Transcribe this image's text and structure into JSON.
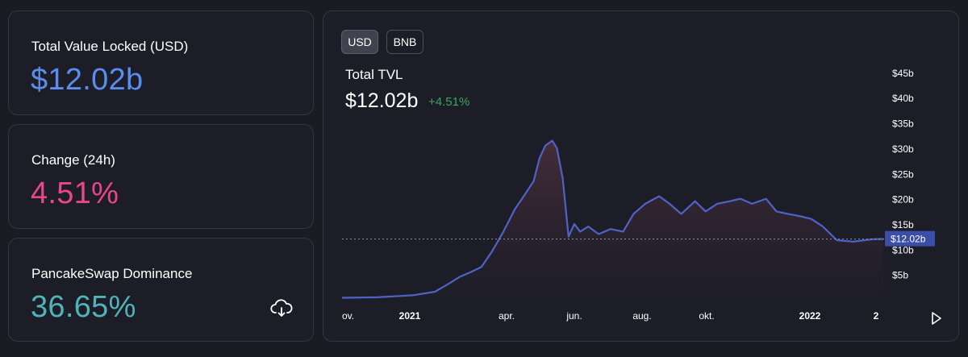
{
  "stats": {
    "tvl": {
      "label": "Total Value Locked (USD)",
      "value": "$12.02b",
      "color": "#5b8def"
    },
    "change": {
      "label": "Change (24h)",
      "value": "4.51%",
      "color": "#e8468f"
    },
    "dominance": {
      "label": "PancakeSwap Dominance",
      "value": "36.65%",
      "color": "#4fb3b7"
    }
  },
  "icons": {
    "download": "cloud-download-icon",
    "play": "play-icon"
  },
  "chart": {
    "toggles": [
      "USD",
      "BNB"
    ],
    "active_toggle": "USD",
    "title": "Total TVL",
    "value": "$12.02b",
    "change": "+4.51%"
  },
  "chart_data": {
    "type": "area",
    "title": "Total TVL",
    "ylabel": "",
    "xlabel": "",
    "y_ticks": [
      "$5b",
      "$10b",
      "$15b",
      "$20b",
      "$25b",
      "$30b",
      "$35b",
      "$40b",
      "$45b"
    ],
    "y_tick_values": [
      5,
      10,
      15,
      20,
      25,
      30,
      35,
      40,
      45
    ],
    "x_ticks": [
      "ov.",
      "2021",
      "apr.",
      "jun.",
      "aug.",
      "okt.",
      "2022",
      "2"
    ],
    "x_tick_values": [
      "2020-11",
      "2021-01",
      "2021-04",
      "2021-06",
      "2021-08",
      "2021-10",
      "2022-01",
      "2022-02"
    ],
    "ylim": [
      0,
      47
    ],
    "current_value": 12.02,
    "current_label": "$12.02b",
    "series": [
      {
        "x": [
          "2020-11-01",
          "2020-12-01",
          "2021-01-01",
          "2021-01-20",
          "2021-02-01",
          "2021-02-10",
          "2021-02-20",
          "2021-03-01",
          "2021-03-10",
          "2021-03-20",
          "2021-03-30",
          "2021-04-05",
          "2021-04-15",
          "2021-04-20",
          "2021-04-25",
          "2021-05-01",
          "2021-05-05",
          "2021-05-10",
          "2021-05-15",
          "2021-05-20",
          "2021-05-25",
          "2021-06-01",
          "2021-06-10",
          "2021-06-20",
          "2021-07-01",
          "2021-07-10",
          "2021-07-20",
          "2021-08-01",
          "2021-08-10",
          "2021-08-20",
          "2021-09-01",
          "2021-09-10",
          "2021-09-20",
          "2021-10-01",
          "2021-10-10",
          "2021-10-20",
          "2021-11-01",
          "2021-11-10",
          "2021-11-20",
          "2021-12-01",
          "2021-12-10",
          "2021-12-20",
          "2022-01-01",
          "2022-01-15",
          "2022-02-01",
          "2022-02-10"
        ],
        "values": [
          0.4,
          0.5,
          0.9,
          1.6,
          3.2,
          4.5,
          5.5,
          6.5,
          9.5,
          13.5,
          18.0,
          20.0,
          23.5,
          28.0,
          30.5,
          31.5,
          30.0,
          24.0,
          12.5,
          15.0,
          13.5,
          14.5,
          13.0,
          14.0,
          13.5,
          17.0,
          19.0,
          20.5,
          19.0,
          17.0,
          19.5,
          17.5,
          19.0,
          19.5,
          20.0,
          19.0,
          20.0,
          17.5,
          17.0,
          16.5,
          16.0,
          14.5,
          11.8,
          11.5,
          12.0,
          12.02
        ]
      }
    ],
    "colors": {
      "line": "#4f63c7",
      "label_bg": "#3a4ea8",
      "change_positive": "#3ba55c"
    }
  }
}
